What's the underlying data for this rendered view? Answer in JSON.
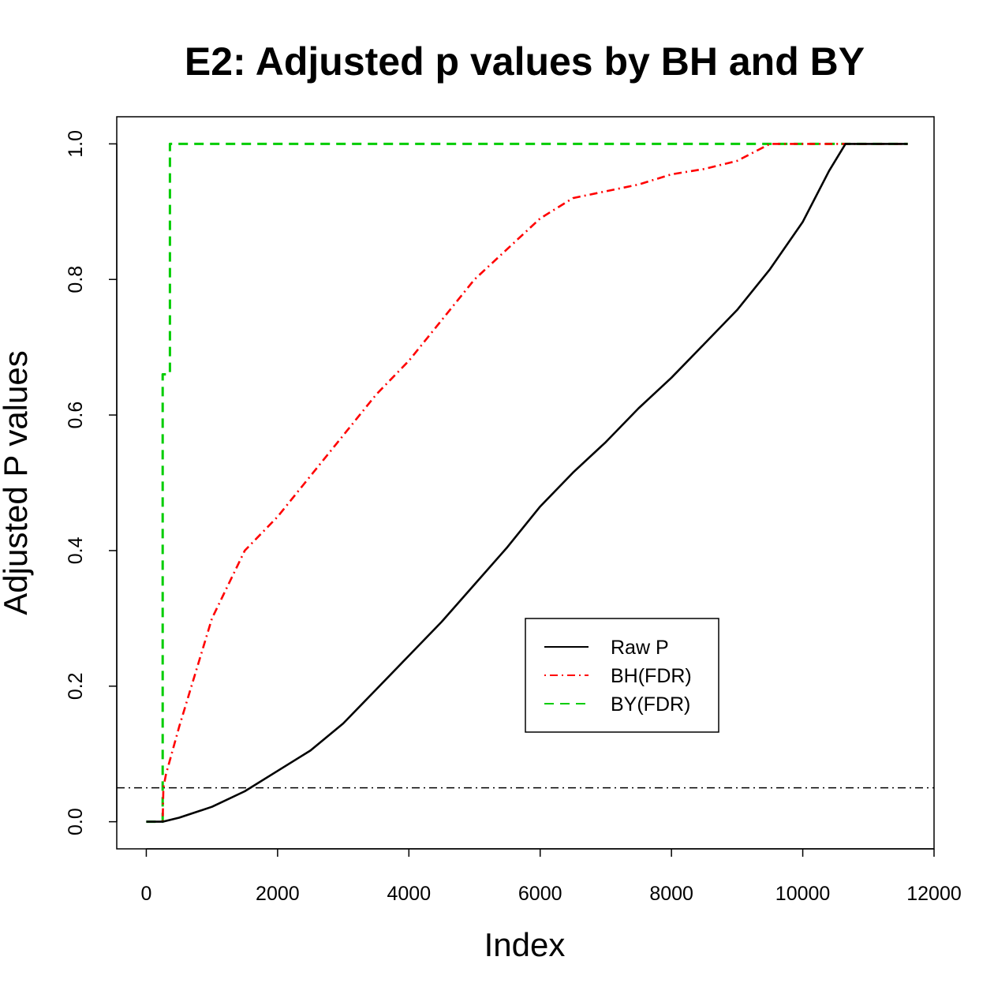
{
  "chart_data": {
    "type": "line",
    "title": "E2: Adjusted p values by BH and BY",
    "xlabel": "Index",
    "ylabel": "Adjusted P values",
    "xlim": [
      -450,
      12000
    ],
    "ylim": [
      -0.04,
      1.04
    ],
    "x_ticks": [
      0,
      2000,
      4000,
      6000,
      8000,
      10000,
      12000
    ],
    "y_ticks": [
      0.0,
      0.2,
      0.4,
      0.6,
      0.8,
      1.0
    ],
    "x_tick_labels": [
      "0",
      "2000",
      "4000",
      "6000",
      "8000",
      "10000",
      "12000"
    ],
    "y_tick_labels": [
      "0.0",
      "0.2",
      "0.4",
      "0.6",
      "0.8",
      "1.0"
    ],
    "grid": false,
    "legend_position": "center-right",
    "reference_line": {
      "y": 0.05,
      "style": "dash-dot",
      "color": "#000000"
    },
    "series": [
      {
        "name": "Raw P",
        "color": "#000000",
        "style": "solid",
        "points": [
          [
            0,
            0
          ],
          [
            250,
            0
          ],
          [
            500,
            0.006
          ],
          [
            1000,
            0.022
          ],
          [
            1500,
            0.045
          ],
          [
            2000,
            0.075
          ],
          [
            2500,
            0.105
          ],
          [
            3000,
            0.145
          ],
          [
            3500,
            0.195
          ],
          [
            4000,
            0.245
          ],
          [
            4500,
            0.295
          ],
          [
            5000,
            0.35
          ],
          [
            5500,
            0.405
          ],
          [
            6000,
            0.465
          ],
          [
            6500,
            0.515
          ],
          [
            7000,
            0.56
          ],
          [
            7500,
            0.61
          ],
          [
            8000,
            0.655
          ],
          [
            8500,
            0.705
          ],
          [
            9000,
            0.755
          ],
          [
            9500,
            0.815
          ],
          [
            10000,
            0.885
          ],
          [
            10400,
            0.96
          ],
          [
            10650,
            1.0
          ],
          [
            11600,
            1.0
          ]
        ]
      },
      {
        "name": "BH(FDR)",
        "color": "#ff0000",
        "style": "dash-dot",
        "points": [
          [
            250,
            0
          ],
          [
            260,
            0.05
          ],
          [
            300,
            0.07
          ],
          [
            500,
            0.14
          ],
          [
            1000,
            0.3
          ],
          [
            1500,
            0.4
          ],
          [
            2000,
            0.45
          ],
          [
            2500,
            0.51
          ],
          [
            3000,
            0.57
          ],
          [
            3500,
            0.63
          ],
          [
            4000,
            0.68
          ],
          [
            4500,
            0.74
          ],
          [
            5000,
            0.8
          ],
          [
            5500,
            0.845
          ],
          [
            6000,
            0.89
          ],
          [
            6500,
            0.92
          ],
          [
            7000,
            0.93
          ],
          [
            7500,
            0.94
          ],
          [
            8000,
            0.955
          ],
          [
            8500,
            0.963
          ],
          [
            9000,
            0.975
          ],
          [
            9500,
            1.0
          ],
          [
            11600,
            1.0
          ]
        ]
      },
      {
        "name": "BY(FDR)",
        "color": "#00cc00",
        "style": "dashed",
        "points": [
          [
            0,
            0
          ],
          [
            250,
            0
          ],
          [
            250,
            0.66
          ],
          [
            360,
            0.66
          ],
          [
            360,
            1.0
          ],
          [
            11600,
            1.0
          ]
        ]
      }
    ]
  }
}
